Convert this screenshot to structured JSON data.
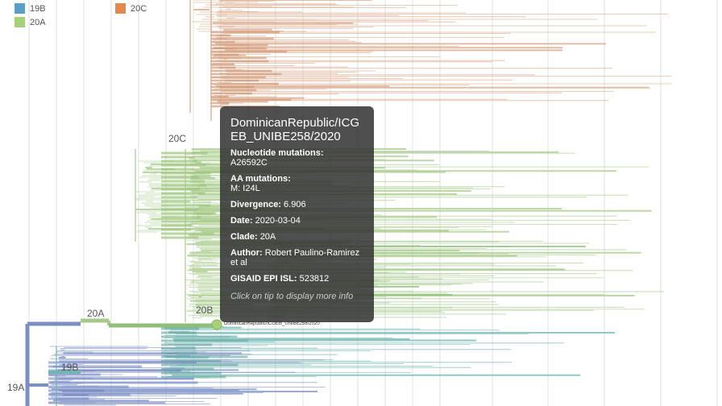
{
  "legend": [
    {
      "label": "19B",
      "color": "#5c9ec4"
    },
    {
      "label": "20A",
      "color": "#a7d07a"
    },
    {
      "label": "20C",
      "color": "#e4894b"
    }
  ],
  "clade_labels": {
    "c20C": "20C",
    "c20A": "20A",
    "c20B": "20B",
    "c19B": "19B",
    "c19A": "19A"
  },
  "selected_tip_label": "DominicanRepublic/ICGEB_UNIBE258/2020",
  "tooltip": {
    "title": "DominicanRepublic/ICGEB_UNIBE258/2020",
    "nuc_label": "Nucleotide mutations:",
    "nuc_value": "A26592C",
    "aa_label": "AA mutations:",
    "aa_value": "M: I24L",
    "divergence_label": "Divergence:",
    "divergence_value": "6.906",
    "date_label": "Date:",
    "date_value": "2020-03-04",
    "clade_label": "Clade:",
    "clade_value": "20A",
    "author_label": "Author:",
    "author_value": "Robert Paulino-Ramirez et al",
    "gisaid_label": "GISAID EPI ISL:",
    "gisaid_value": "523812",
    "note": "Click on tip to display more info"
  },
  "colors": {
    "clade_19A": "#7b8fc4",
    "clade_19B": "#6fb5b0",
    "clade_20A": "#a7c98a",
    "clade_20B": "#8fbf7a",
    "clade_20C": "#d9a585",
    "grid": "#e2e2e2",
    "tooltip_bg": "#323232"
  }
}
